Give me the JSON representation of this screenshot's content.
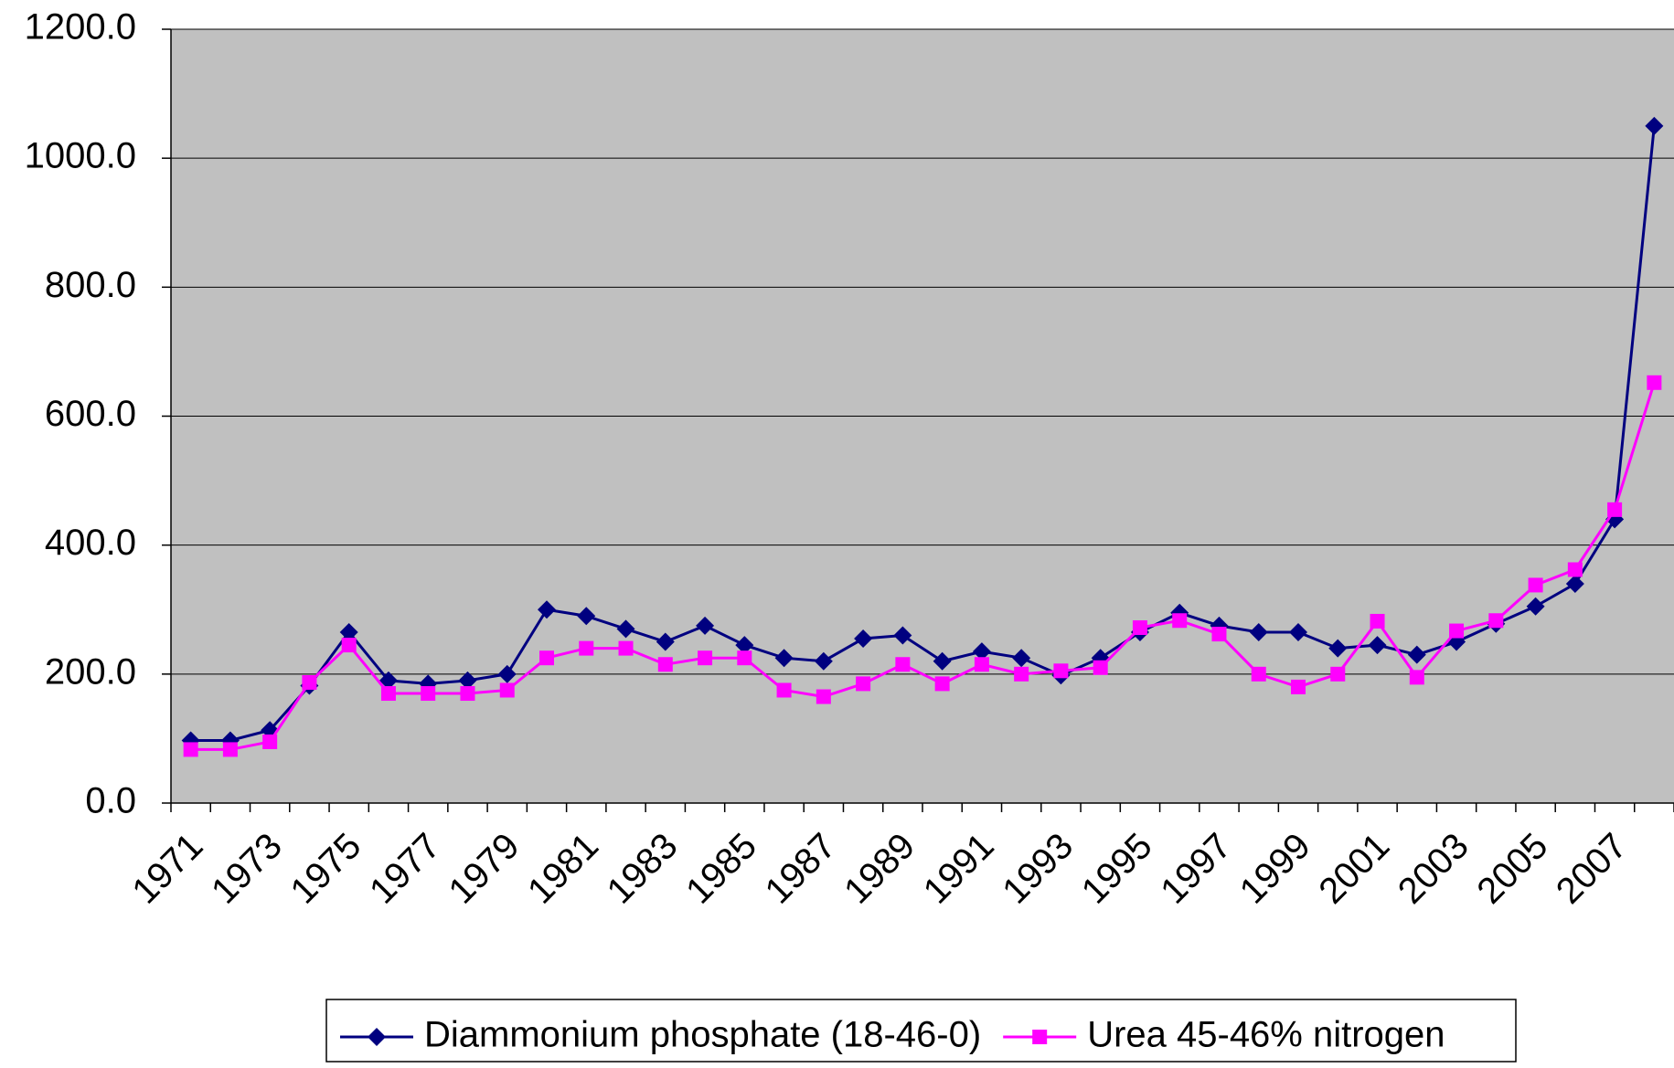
{
  "chart_data": {
    "type": "line",
    "categories": [
      "1971",
      null,
      "1973",
      null,
      "1975",
      null,
      "1977",
      null,
      "1979",
      null,
      "1981",
      null,
      "1983",
      null,
      "1985",
      null,
      "1987",
      null,
      "1989",
      null,
      "1991",
      null,
      "1993",
      null,
      "1995",
      null,
      "1997",
      null,
      "1999",
      null,
      "2001",
      null,
      "2003",
      null,
      "2005",
      null,
      "2007",
      null
    ],
    "series": [
      {
        "name": "Diammonium phosphate (18-46-0)",
        "color": "#000080",
        "marker": "diamond",
        "values": [
          97,
          97,
          113,
          182,
          265,
          190,
          185,
          190,
          200,
          300,
          290,
          270,
          250,
          275,
          245,
          225,
          220,
          255,
          260,
          220,
          235,
          225,
          198,
          225,
          265,
          295,
          275,
          265,
          265,
          240,
          245,
          230,
          250,
          278,
          305,
          340,
          440,
          1050
        ]
      },
      {
        "name": "Urea 45-46% nitrogen",
        "color": "#ff00ff",
        "marker": "square",
        "values": [
          83,
          83,
          95,
          187,
          245,
          170,
          170,
          170,
          175,
          225,
          240,
          240,
          215,
          225,
          225,
          175,
          165,
          185,
          215,
          185,
          215,
          200,
          205,
          210,
          272,
          283,
          262,
          200,
          180,
          200,
          282,
          195,
          267,
          283,
          338,
          362,
          455,
          652
        ]
      }
    ],
    "ylim": [
      0,
      1200
    ],
    "yticks": [
      {
        "value": 0,
        "label": "0.0"
      },
      {
        "value": 200,
        "label": "200.0"
      },
      {
        "value": 400,
        "label": "400.0"
      },
      {
        "value": 600,
        "label": "600.0"
      },
      {
        "value": 800,
        "label": "800.0"
      },
      {
        "value": 1000,
        "label": "1000.0"
      },
      {
        "value": 1200,
        "label": "1200.0"
      }
    ],
    "grid": true,
    "legend": "bottom"
  }
}
